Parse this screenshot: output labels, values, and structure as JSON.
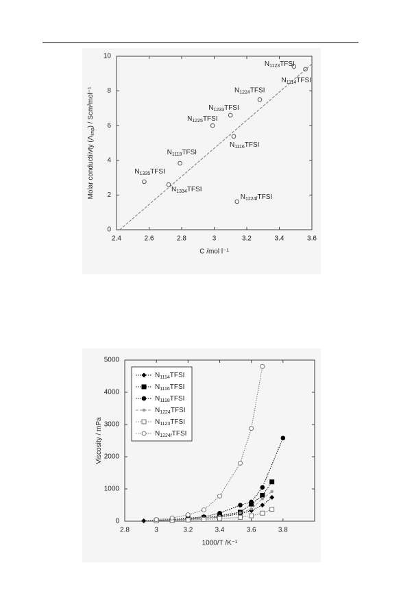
{
  "chart_data": [
    {
      "type": "scatter",
      "xlabel": "C /mol l⁻¹",
      "ylabel": [
        "Molar conductiivty  (Λ",
        "imp",
        ") / Scm²mol⁻¹"
      ],
      "x": [
        3.49,
        3.56,
        3.28,
        3.1,
        2.99,
        3.12,
        2.79,
        2.57,
        2.72,
        3.14
      ],
      "values": [
        9.41,
        9.25,
        7.5,
        6.6,
        6.0,
        5.38,
        3.83,
        2.77,
        2.6,
        1.62
      ],
      "point_labels": [
        [
          "N",
          "1123",
          "TFSI"
        ],
        [
          "N",
          "1114",
          "TFSI"
        ],
        [
          "N",
          "1224",
          "TFSI"
        ],
        [
          "N",
          "1233",
          "TFSI"
        ],
        [
          "N",
          "1225",
          "TFSI"
        ],
        [
          "N",
          "1116",
          "TFSI"
        ],
        [
          "N",
          "1118",
          "TFSI"
        ],
        [
          "N",
          "1335",
          "TFSI"
        ],
        [
          "N",
          "1334",
          "TFSI"
        ],
        [
          "N",
          "1224f",
          "TFSI"
        ]
      ],
      "fit_line": {
        "x": [
          2.42,
          3.6
        ],
        "y": [
          0,
          9.55
        ]
      },
      "color": "#555555",
      "xlim": [
        2.4,
        3.6
      ],
      "xticks": [
        2.4,
        2.6,
        2.8,
        3,
        3.2,
        3.4,
        3.6
      ],
      "ylim": [
        0,
        10
      ],
      "yticks": [
        0,
        2,
        4,
        6,
        8,
        10
      ]
    },
    {
      "type": "line",
      "xlabel": "1000/T /K⁻¹",
      "ylabel": [
        "Viscosity / mPa"
      ],
      "legend": "upper left",
      "series": [
        {
          "name": [
            "N",
            "1114",
            "TFSI"
          ],
          "color": "#000000",
          "marker": "diamond",
          "x": [
            2.92,
            3.0,
            3.1,
            3.2,
            3.3,
            3.4,
            3.53,
            3.6,
            3.67,
            3.73
          ],
          "values": [
            10,
            20,
            35,
            60,
            90,
            130,
            230,
            330,
            500,
            740
          ]
        },
        {
          "name": [
            "N",
            "1116",
            "TFSI"
          ],
          "color": "#000000",
          "marker": "square",
          "x": [
            3.0,
            3.1,
            3.2,
            3.3,
            3.4,
            3.53,
            3.6,
            3.67,
            3.73
          ],
          "values": [
            25,
            45,
            75,
            110,
            170,
            280,
            530,
            800,
            1220
          ]
        },
        {
          "name": [
            "N",
            "1118",
            "TFSI"
          ],
          "color": "#000000",
          "marker": "circle",
          "x": [
            3.0,
            3.1,
            3.2,
            3.3,
            3.4,
            3.53,
            3.6,
            3.67,
            3.8
          ],
          "values": [
            30,
            55,
            90,
            140,
            250,
            500,
            600,
            1050,
            2580
          ]
        },
        {
          "name": [
            "N",
            "1224",
            "TFSI"
          ],
          "color": "#999999",
          "marker": "dot",
          "x": [
            3.0,
            3.1,
            3.2,
            3.3,
            3.4,
            3.53,
            3.6,
            3.67,
            3.73
          ],
          "values": [
            20,
            40,
            65,
            95,
            150,
            260,
            380,
            700,
            920
          ]
        },
        {
          "name": [
            "N",
            "1123",
            "TFSI"
          ],
          "color": "#777777",
          "marker": "open-square",
          "x": [
            3.0,
            3.1,
            3.2,
            3.3,
            3.4,
            3.53,
            3.6,
            3.67,
            3.73
          ],
          "values": [
            15,
            25,
            40,
            55,
            80,
            120,
            170,
            250,
            370
          ]
        },
        {
          "name": [
            "N",
            "1224f",
            "TFSI"
          ],
          "color": "#777777",
          "marker": "open-circle",
          "x": [
            3.0,
            3.1,
            3.2,
            3.3,
            3.4,
            3.53,
            3.6,
            3.67
          ],
          "values": [
            50,
            100,
            200,
            350,
            780,
            1800,
            2880,
            4800
          ]
        }
      ],
      "xlim": [
        2.8,
        4.0
      ],
      "xticks": [
        2.8,
        3,
        3.2,
        3.4,
        3.6,
        3.8
      ],
      "ylim": [
        0,
        5000
      ],
      "yticks": [
        0,
        1000,
        2000,
        3000,
        4000,
        5000
      ]
    }
  ]
}
